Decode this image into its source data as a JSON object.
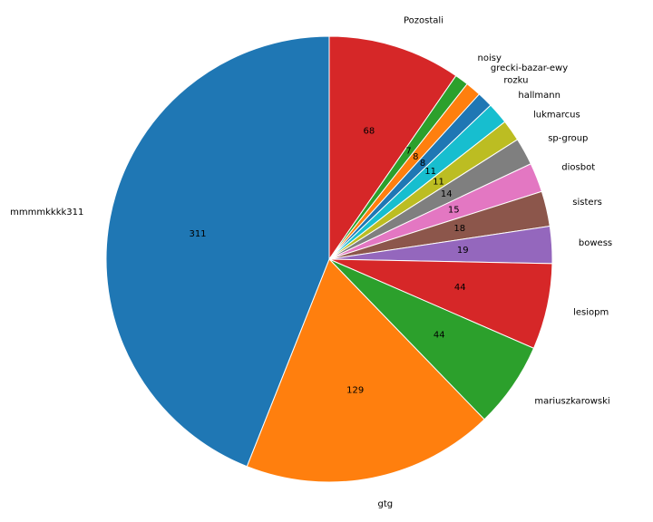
{
  "chart_data": {
    "type": "pie",
    "start_angle_deg": 90,
    "direction": "clockwise",
    "legend": "none",
    "title": "",
    "slices": [
      {
        "label": "Pozostali",
        "value": 68,
        "color": "#d62728"
      },
      {
        "label": "noisy",
        "value": 7,
        "color": "#2ca02c"
      },
      {
        "label": "grecki-bazar-ewy",
        "value": 8,
        "color": "#ff7f0e"
      },
      {
        "label": "rozku",
        "value": 8,
        "color": "#1f77b4"
      },
      {
        "label": "hallmann",
        "value": 11,
        "color": "#17becf"
      },
      {
        "label": "lukmarcus",
        "value": 11,
        "color": "#bcbd22"
      },
      {
        "label": "sp-group",
        "value": 14,
        "color": "#7f7f7f"
      },
      {
        "label": "diosbot",
        "value": 15,
        "color": "#e377c2"
      },
      {
        "label": "sisters",
        "value": 18,
        "color": "#8c564b"
      },
      {
        "label": "bowess",
        "value": 19,
        "color": "#9467bd"
      },
      {
        "label": "lesiopm",
        "value": 44,
        "color": "#d62728"
      },
      {
        "label": "mariuszkarowski",
        "value": 44,
        "color": "#2ca02c"
      },
      {
        "label": "gtg",
        "value": 129,
        "color": "#ff7f0e"
      },
      {
        "label": "mmmmkkkk311",
        "value": 311,
        "color": "#1f77b4"
      }
    ]
  }
}
